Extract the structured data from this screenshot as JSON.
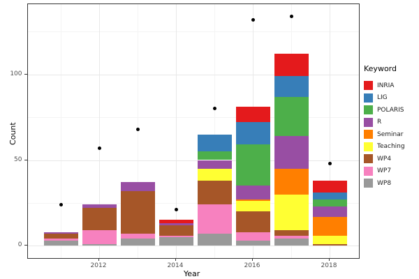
{
  "figure": {
    "y_axis": {
      "title": "Count",
      "tick_labels": [
        "0",
        "50",
        "100"
      ],
      "tick_values": [
        0,
        50,
        100
      ],
      "minor_values": [
        25,
        75,
        125
      ]
    },
    "x_axis": {
      "title": "Year",
      "tick_labels": [
        "2012",
        "2014",
        "2016",
        "2018"
      ],
      "tick_years": [
        2012,
        2014,
        2016,
        2018
      ],
      "minor_years": [
        2011,
        2013,
        2015,
        2017
      ]
    },
    "legend": {
      "title": "Keyword"
    }
  },
  "chart_data": {
    "type": "bar",
    "stacked": true,
    "title": "",
    "xlabel": "Year",
    "ylabel": "Count",
    "categories": [
      2011,
      2012,
      2013,
      2014,
      2015,
      2016,
      2017,
      2018
    ],
    "series": [
      {
        "name": "INRIA",
        "color": "#E41A1C",
        "values": [
          0,
          0,
          0,
          2,
          0,
          9,
          13,
          7
        ]
      },
      {
        "name": "LIG",
        "color": "#377EB8",
        "values": [
          0,
          0,
          0,
          0,
          10,
          13,
          12,
          4
        ]
      },
      {
        "name": "POLARIS",
        "color": "#4DAF4A",
        "values": [
          0,
          0,
          0,
          0,
          5,
          24,
          23,
          4
        ]
      },
      {
        "name": "R",
        "color": "#984EA3",
        "values": [
          1,
          2,
          5,
          1,
          5,
          8,
          19,
          6
        ]
      },
      {
        "name": "Seminar",
        "color": "#FF7F00",
        "values": [
          0,
          0,
          0,
          0,
          0,
          1,
          15,
          11
        ]
      },
      {
        "name": "Teaching",
        "color": "#FFFF33",
        "values": [
          0,
          0,
          0,
          0,
          7,
          6,
          21,
          5
        ]
      },
      {
        "name": "WP4",
        "color": "#A65628",
        "values": [
          3,
          13,
          25,
          6,
          14,
          12,
          3,
          1
        ]
      },
      {
        "name": "WP7",
        "color": "#F781BF",
        "values": [
          1,
          8,
          3,
          1,
          17,
          5,
          2,
          0
        ]
      },
      {
        "name": "WP8",
        "color": "#999999",
        "values": [
          3,
          1,
          4,
          5,
          7,
          3,
          4,
          0
        ]
      }
    ],
    "bar_totals": [
      8,
      24,
      37,
      15,
      65,
      81,
      112,
      38
    ],
    "points": {
      "name": "yearly-total-dots",
      "color": "#000000",
      "values": [
        24,
        57,
        68,
        21,
        80,
        132,
        134,
        48
      ]
    },
    "ylim": [
      -7,
      141
    ],
    "grid": true,
    "legend_position": "right"
  }
}
